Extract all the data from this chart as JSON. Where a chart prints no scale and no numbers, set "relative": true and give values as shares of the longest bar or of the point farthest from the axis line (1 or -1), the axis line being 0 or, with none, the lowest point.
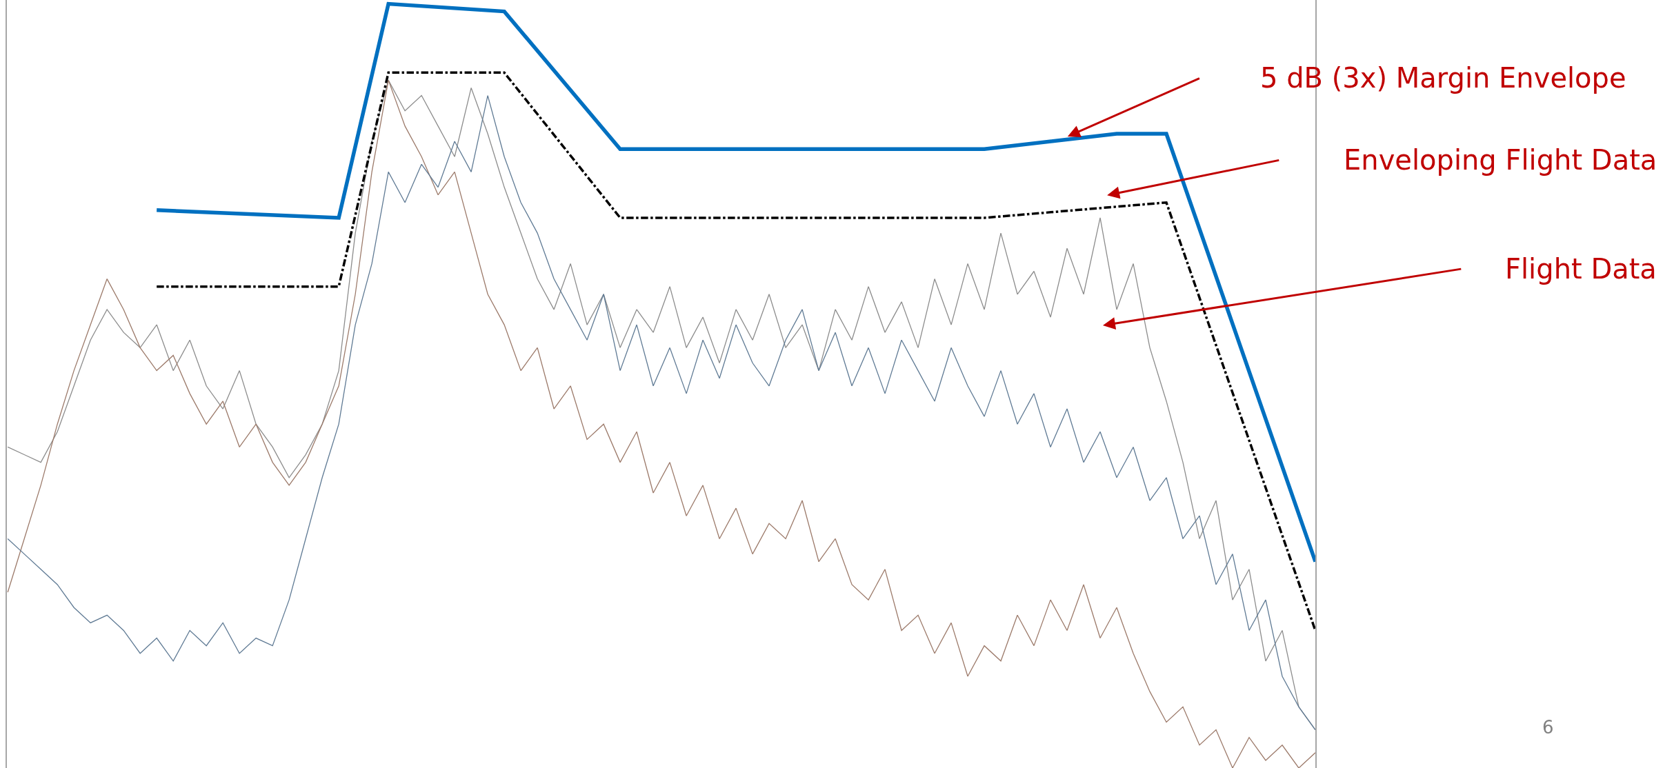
{
  "chart_data": {
    "type": "line",
    "relative": true,
    "categories": [
      null,
      null,
      null,
      null,
      null,
      null,
      null,
      null,
      null,
      null,
      null,
      null,
      null,
      null,
      null,
      null,
      null,
      null,
      null,
      null,
      null,
      null,
      null,
      null,
      null,
      null,
      null,
      null,
      null,
      null,
      null,
      null,
      null,
      null,
      null,
      null,
      null,
      null,
      null,
      null,
      null,
      null,
      null,
      null,
      null,
      null,
      null,
      null,
      null,
      null,
      null,
      null,
      null,
      null,
      null,
      null,
      null,
      null,
      null,
      null,
      null,
      null,
      null,
      null,
      null,
      null,
      null,
      null,
      null,
      null,
      null,
      null,
      null,
      null,
      null,
      null,
      null,
      null,
      null,
      null
    ],
    "series": [
      {
        "color": "#8c8c8c",
        "values": [
          0.42,
          0.41,
          0.4,
          0.44,
          0.5,
          0.56,
          0.6,
          0.57,
          0.55,
          0.58,
          0.52,
          0.56,
          0.5,
          0.47,
          0.52,
          0.45,
          0.42,
          0.38,
          0.41,
          0.45,
          0.52,
          0.7,
          0.82,
          0.9,
          0.86,
          0.88,
          0.84,
          0.8,
          0.89,
          0.83,
          0.76,
          0.7,
          0.64,
          0.6,
          0.66,
          0.58,
          0.62,
          0.55,
          0.6,
          0.57,
          0.63,
          0.55,
          0.59,
          0.53,
          0.6,
          0.56,
          0.62,
          0.55,
          0.58,
          0.52,
          0.6,
          0.56,
          0.63,
          0.57,
          0.61,
          0.55,
          0.64,
          0.58,
          0.66,
          0.6,
          0.7,
          0.62,
          0.65,
          0.59,
          0.68,
          0.62,
          0.72,
          0.6,
          0.66,
          0.55,
          0.48,
          0.4,
          0.3,
          0.35,
          0.22,
          0.26,
          0.14,
          0.18,
          0.08,
          0.05
        ]
      },
      {
        "color": "#9c7a6a",
        "values": [
          0.23,
          0.3,
          0.37,
          0.45,
          0.52,
          0.58,
          0.64,
          0.6,
          0.55,
          0.52,
          0.54,
          0.49,
          0.45,
          0.48,
          0.42,
          0.45,
          0.4,
          0.37,
          0.4,
          0.45,
          0.5,
          0.62,
          0.78,
          0.9,
          0.84,
          0.8,
          0.75,
          0.78,
          0.7,
          0.62,
          0.58,
          0.52,
          0.55,
          0.47,
          0.5,
          0.43,
          0.45,
          0.4,
          0.44,
          0.36,
          0.4,
          0.33,
          0.37,
          0.3,
          0.34,
          0.28,
          0.32,
          0.3,
          0.35,
          0.27,
          0.3,
          0.24,
          0.22,
          0.26,
          0.18,
          0.2,
          0.15,
          0.19,
          0.12,
          0.16,
          0.14,
          0.2,
          0.16,
          0.22,
          0.18,
          0.24,
          0.17,
          0.21,
          0.15,
          0.1,
          0.06,
          0.08,
          0.03,
          0.05,
          0.0,
          0.04,
          0.01,
          0.03,
          0.0,
          0.02
        ]
      },
      {
        "color": "#5f7a94",
        "values": [
          0.3,
          0.28,
          0.26,
          0.24,
          0.21,
          0.19,
          0.2,
          0.18,
          0.15,
          0.17,
          0.14,
          0.18,
          0.16,
          0.19,
          0.15,
          0.17,
          0.16,
          0.22,
          0.3,
          0.38,
          0.45,
          0.58,
          0.66,
          0.78,
          0.74,
          0.79,
          0.76,
          0.82,
          0.78,
          0.88,
          0.8,
          0.74,
          0.7,
          0.64,
          0.6,
          0.56,
          0.62,
          0.52,
          0.58,
          0.5,
          0.55,
          0.49,
          0.56,
          0.51,
          0.58,
          0.53,
          0.5,
          0.56,
          0.6,
          0.52,
          0.57,
          0.5,
          0.55,
          0.49,
          0.56,
          0.52,
          0.48,
          0.55,
          0.5,
          0.46,
          0.52,
          0.45,
          0.49,
          0.42,
          0.47,
          0.4,
          0.44,
          0.38,
          0.42,
          0.35,
          0.38,
          0.3,
          0.33,
          0.24,
          0.28,
          0.18,
          0.22,
          0.12,
          0.08,
          0.05
        ]
      },
      {
        "color": "#0070c0",
        "values": [
          null,
          null,
          null,
          null,
          null,
          null,
          null,
          null,
          null,
          0.73,
          null,
          null,
          null,
          null,
          null,
          null,
          null,
          null,
          null,
          null,
          0.72,
          null,
          null,
          1.0,
          null,
          null,
          null,
          null,
          null,
          null,
          0.99,
          null,
          null,
          null,
          null,
          null,
          null,
          0.81,
          null,
          null,
          null,
          null,
          null,
          null,
          null,
          null,
          null,
          null,
          null,
          null,
          null,
          null,
          null,
          null,
          null,
          null,
          null,
          null,
          null,
          0.81,
          null,
          null,
          null,
          null,
          null,
          null,
          null,
          0.83,
          null,
          null,
          0.83,
          null,
          null,
          null,
          null,
          null,
          null,
          null,
          null,
          0.27
        ]
      },
      {
        "color": "#000000",
        "line_style": "dashed",
        "values": [
          null,
          null,
          null,
          null,
          null,
          null,
          null,
          null,
          null,
          0.63,
          null,
          null,
          null,
          null,
          null,
          null,
          null,
          null,
          null,
          null,
          0.63,
          null,
          null,
          0.91,
          null,
          null,
          null,
          null,
          null,
          null,
          0.91,
          null,
          null,
          null,
          null,
          null,
          null,
          0.72,
          null,
          null,
          null,
          null,
          null,
          null,
          null,
          null,
          null,
          null,
          null,
          null,
          null,
          null,
          null,
          null,
          null,
          null,
          null,
          null,
          null,
          0.72,
          null,
          null,
          null,
          null,
          null,
          null,
          null,
          null,
          null,
          null,
          0.74,
          null,
          null,
          null,
          null,
          null,
          null,
          null,
          null,
          0.18
        ]
      }
    ],
    "annotations": [
      "5 dB (3x) Margin Envelope",
      "Enveloping Flight Data",
      "Flight Data",
      "6"
    ]
  }
}
